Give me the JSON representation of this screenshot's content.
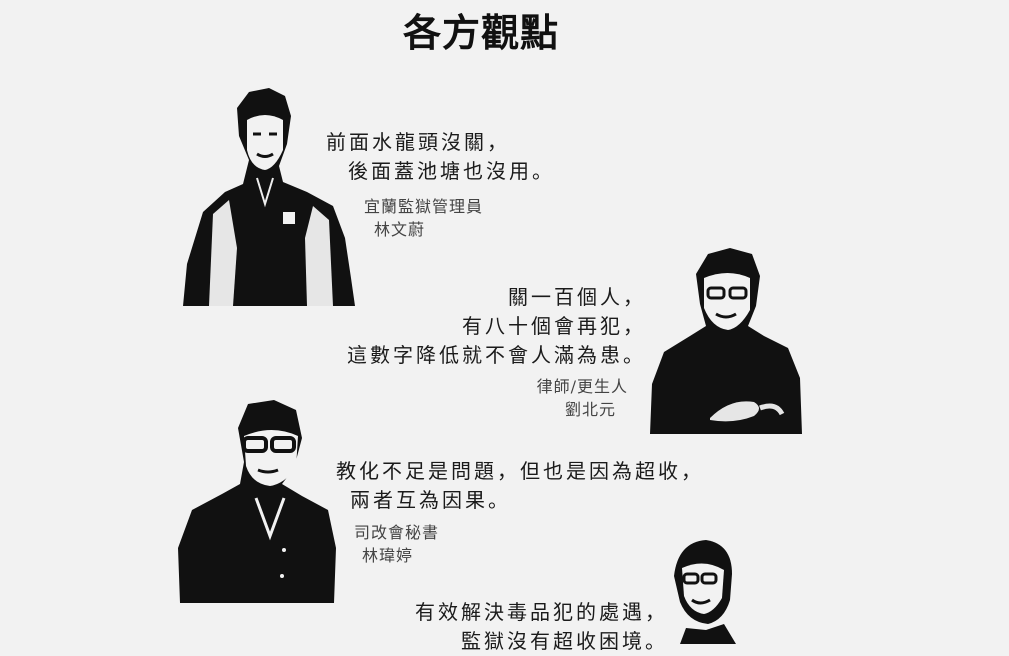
{
  "page": {
    "title": "各方觀點"
  },
  "quotes": [
    {
      "lines": [
        "前面水龍頭沒關，",
        "後面蓋池塘也沒用。"
      ],
      "role": "宜蘭監獄管理員",
      "name": "林文蔚"
    },
    {
      "lines": [
        "關一百個人，",
        "有八十個會再犯，",
        "這數字降低就不會人滿為患。"
      ],
      "role": "律師/更生人",
      "name": "劉北元"
    },
    {
      "lines": [
        "教化不足是問題，但也是因為超收，",
        "兩者互為因果。"
      ],
      "role": "司改會秘書",
      "name": "林瑋婷"
    },
    {
      "lines": [
        "有效解決毒品犯的處遇，",
        "監獄沒有超收困境。"
      ]
    }
  ]
}
